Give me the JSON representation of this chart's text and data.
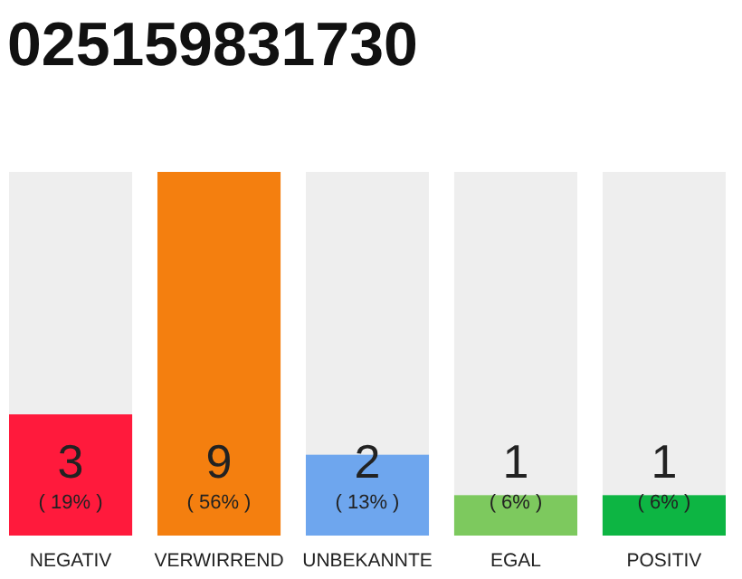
{
  "chart_data": {
    "type": "bar",
    "title": "025159831730",
    "categories": [
      "NEGATIV",
      "VERWIRREND",
      "UNBEKANNTE",
      "EGAL",
      "POSITIV"
    ],
    "values": [
      3,
      9,
      2,
      1,
      1
    ],
    "colors": [
      "#ff1a3c",
      "#f47f0f",
      "#6ea6ee",
      "#7dc95e",
      "#0db543"
    ],
    "ylim": [
      0,
      9
    ],
    "data_labels": true,
    "annotations": [
      "( 19% )",
      "( 56% )",
      "( 13% )",
      "( 6% )",
      "( 6% )"
    ]
  }
}
